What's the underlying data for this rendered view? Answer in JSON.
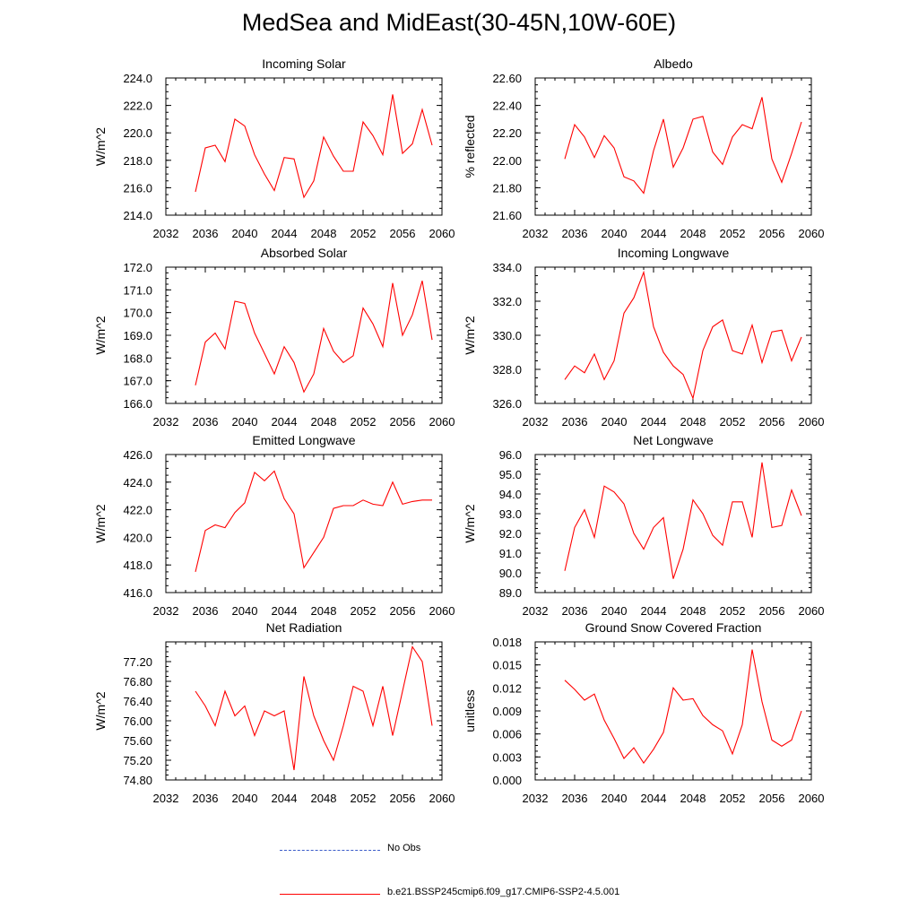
{
  "title": "MedSea and MidEast(30-45N,10W-60E)",
  "legend": {
    "items": [
      {
        "label": "No Obs",
        "color": "#3a5bc9",
        "dashed": true
      },
      {
        "label": "b.e21.BSSP245cmip6.f09_g17.CMIP6-SSP2-4.5.001",
        "color": "#ff0000",
        "dashed": false
      }
    ]
  },
  "chart_data": [
    {
      "type": "line",
      "title": "Incoming Solar",
      "xlabel": "",
      "ylabel": "W/m^2",
      "xlim": [
        2032,
        2060
      ],
      "ylim": [
        214,
        224
      ],
      "xticks": [
        "2032",
        "2036",
        "2040",
        "2044",
        "2048",
        "2052",
        "2056",
        "2060"
      ],
      "yticks": [
        "214.0",
        "216.0",
        "218.0",
        "220.0",
        "222.0",
        "224.0"
      ],
      "series": [
        {
          "color": "#ff0000",
          "x": [
            2035,
            2036,
            2037,
            2038,
            2039,
            2040,
            2041,
            2042,
            2043,
            2044,
            2045,
            2046,
            2047,
            2048,
            2049,
            2050,
            2051,
            2052,
            2053,
            2054,
            2055,
            2056,
            2057,
            2058,
            2059
          ],
          "y": [
            215.7,
            218.9,
            219.1,
            217.9,
            221.0,
            220.5,
            218.4,
            217.0,
            215.8,
            218.2,
            218.1,
            215.3,
            216.5,
            219.7,
            218.3,
            217.2,
            217.2,
            220.8,
            219.8,
            218.4,
            222.8,
            218.5,
            219.2,
            221.7,
            219.1
          ]
        }
      ]
    },
    {
      "type": "line",
      "title": "Albedo",
      "xlabel": "",
      "ylabel": "% reflected",
      "xlim": [
        2032,
        2060
      ],
      "ylim": [
        21.6,
        22.6
      ],
      "xticks": [
        "2032",
        "2036",
        "2040",
        "2044",
        "2048",
        "2052",
        "2056",
        "2060"
      ],
      "yticks": [
        "21.60",
        "21.80",
        "22.00",
        "22.20",
        "22.40",
        "22.60"
      ],
      "series": [
        {
          "color": "#ff0000",
          "x": [
            2035,
            2036,
            2037,
            2038,
            2039,
            2040,
            2041,
            2042,
            2043,
            2044,
            2045,
            2046,
            2047,
            2048,
            2049,
            2050,
            2051,
            2052,
            2053,
            2054,
            2055,
            2056,
            2057,
            2058,
            2059
          ],
          "y": [
            22.01,
            22.26,
            22.17,
            22.02,
            22.18,
            22.09,
            21.88,
            21.85,
            21.76,
            22.07,
            22.3,
            21.95,
            22.09,
            22.3,
            22.32,
            22.06,
            21.97,
            22.17,
            22.26,
            22.23,
            22.46,
            22.01,
            21.84,
            22.05,
            22.28
          ]
        }
      ]
    },
    {
      "type": "line",
      "title": "Absorbed Solar",
      "xlabel": "",
      "ylabel": "W/m^2",
      "xlim": [
        2032,
        2060
      ],
      "ylim": [
        166,
        172
      ],
      "xticks": [
        "2032",
        "2036",
        "2040",
        "2044",
        "2048",
        "2052",
        "2056",
        "2060"
      ],
      "yticks": [
        "166.0",
        "167.0",
        "168.0",
        "169.0",
        "170.0",
        "171.0",
        "172.0"
      ],
      "series": [
        {
          "color": "#ff0000",
          "x": [
            2035,
            2036,
            2037,
            2038,
            2039,
            2040,
            2041,
            2042,
            2043,
            2044,
            2045,
            2046,
            2047,
            2048,
            2049,
            2050,
            2051,
            2052,
            2053,
            2054,
            2055,
            2056,
            2057,
            2058,
            2059
          ],
          "y": [
            166.8,
            168.7,
            169.1,
            168.4,
            170.5,
            170.4,
            169.1,
            168.2,
            167.3,
            168.5,
            167.8,
            166.5,
            167.3,
            169.3,
            168.3,
            167.8,
            168.1,
            170.2,
            169.5,
            168.5,
            171.3,
            169.0,
            169.9,
            171.4,
            168.8
          ]
        }
      ]
    },
    {
      "type": "line",
      "title": "Incoming Longwave",
      "xlabel": "",
      "ylabel": "W/m^2",
      "xlim": [
        2032,
        2060
      ],
      "ylim": [
        326,
        334
      ],
      "xticks": [
        "2032",
        "2036",
        "2040",
        "2044",
        "2048",
        "2052",
        "2056",
        "2060"
      ],
      "yticks": [
        "326.0",
        "328.0",
        "330.0",
        "332.0",
        "334.0"
      ],
      "series": [
        {
          "color": "#ff0000",
          "x": [
            2035,
            2036,
            2037,
            2038,
            2039,
            2040,
            2041,
            2042,
            2043,
            2044,
            2045,
            2046,
            2047,
            2048,
            2049,
            2050,
            2051,
            2052,
            2053,
            2054,
            2055,
            2056,
            2057,
            2058,
            2059
          ],
          "y": [
            327.4,
            328.2,
            327.8,
            328.9,
            327.4,
            328.5,
            331.3,
            332.2,
            333.7,
            330.5,
            329.0,
            328.2,
            327.7,
            326.3,
            329.1,
            330.5,
            330.9,
            329.1,
            328.9,
            330.6,
            328.4,
            330.2,
            330.3,
            328.5,
            329.9
          ]
        }
      ]
    },
    {
      "type": "line",
      "title": "Emitted Longwave",
      "xlabel": "",
      "ylabel": "W/m^2",
      "xlim": [
        2032,
        2060
      ],
      "ylim": [
        416,
        426
      ],
      "xticks": [
        "2032",
        "2036",
        "2040",
        "2044",
        "2048",
        "2052",
        "2056",
        "2060"
      ],
      "yticks": [
        "416.0",
        "418.0",
        "420.0",
        "422.0",
        "424.0",
        "426.0"
      ],
      "series": [
        {
          "color": "#ff0000",
          "x": [
            2035,
            2036,
            2037,
            2038,
            2039,
            2040,
            2041,
            2042,
            2043,
            2044,
            2045,
            2046,
            2047,
            2048,
            2049,
            2050,
            2051,
            2052,
            2053,
            2054,
            2055,
            2056,
            2057,
            2058,
            2059
          ],
          "y": [
            417.5,
            420.5,
            420.9,
            420.7,
            421.8,
            422.5,
            424.7,
            424.1,
            424.8,
            422.8,
            421.7,
            417.8,
            418.9,
            420.0,
            422.1,
            422.3,
            422.3,
            422.7,
            422.4,
            422.3,
            424.0,
            422.4,
            422.6,
            422.7,
            422.7
          ]
        }
      ]
    },
    {
      "type": "line",
      "title": "Net Longwave",
      "xlabel": "",
      "ylabel": "W/m^2",
      "xlim": [
        2032,
        2060
      ],
      "ylim": [
        89,
        96
      ],
      "xticks": [
        "2032",
        "2036",
        "2040",
        "2044",
        "2048",
        "2052",
        "2056",
        "2060"
      ],
      "yticks": [
        "89.0",
        "90.0",
        "91.0",
        "92.0",
        "93.0",
        "94.0",
        "95.0",
        "96.0"
      ],
      "series": [
        {
          "color": "#ff0000",
          "x": [
            2035,
            2036,
            2037,
            2038,
            2039,
            2040,
            2041,
            2042,
            2043,
            2044,
            2045,
            2046,
            2047,
            2048,
            2049,
            2050,
            2051,
            2052,
            2053,
            2054,
            2055,
            2056,
            2057,
            2058,
            2059
          ],
          "y": [
            90.1,
            92.3,
            93.2,
            91.8,
            94.4,
            94.1,
            93.5,
            92.0,
            91.2,
            92.3,
            92.8,
            89.7,
            91.2,
            93.7,
            93.0,
            91.9,
            91.4,
            93.6,
            93.6,
            91.8,
            95.6,
            92.3,
            92.4,
            94.2,
            92.9
          ]
        }
      ]
    },
    {
      "type": "line",
      "title": "Net Radiation",
      "xlabel": "",
      "ylabel": "W/m^2",
      "xlim": [
        2032,
        2060
      ],
      "ylim": [
        74.8,
        77.6
      ],
      "xticks": [
        "2032",
        "2036",
        "2040",
        "2044",
        "2048",
        "2052",
        "2056",
        "2060"
      ],
      "yticks": [
        "74.80",
        "75.20",
        "75.60",
        "76.00",
        "76.40",
        "76.80",
        "77.20"
      ],
      "series": [
        {
          "color": "#ff0000",
          "x": [
            2035,
            2036,
            2037,
            2038,
            2039,
            2040,
            2041,
            2042,
            2043,
            2044,
            2045,
            2046,
            2047,
            2048,
            2049,
            2050,
            2051,
            2052,
            2053,
            2054,
            2055,
            2056,
            2057,
            2058,
            2059
          ],
          "y": [
            76.6,
            76.3,
            75.9,
            76.6,
            76.1,
            76.3,
            75.7,
            76.2,
            76.1,
            76.2,
            75.0,
            76.9,
            76.1,
            75.6,
            75.2,
            75.9,
            76.7,
            76.6,
            75.9,
            76.7,
            75.7,
            76.6,
            77.5,
            77.2,
            75.9
          ]
        }
      ]
    },
    {
      "type": "line",
      "title": "Ground Snow Covered Fraction",
      "xlabel": "",
      "ylabel": "unitless",
      "xlim": [
        2032,
        2060
      ],
      "ylim": [
        0,
        0.018
      ],
      "xticks": [
        "2032",
        "2036",
        "2040",
        "2044",
        "2048",
        "2052",
        "2056",
        "2060"
      ],
      "yticks": [
        "0.000",
        "0.003",
        "0.006",
        "0.009",
        "0.012",
        "0.015",
        "0.018"
      ],
      "series": [
        {
          "color": "#ff0000",
          "x": [
            2035,
            2036,
            2037,
            2038,
            2039,
            2040,
            2041,
            2042,
            2043,
            2044,
            2045,
            2046,
            2047,
            2048,
            2049,
            2050,
            2051,
            2052,
            2053,
            2054,
            2055,
            2056,
            2057,
            2058,
            2059
          ],
          "y": [
            0.013,
            0.0118,
            0.0104,
            0.0112,
            0.0078,
            0.0054,
            0.0028,
            0.0042,
            0.0022,
            0.004,
            0.0062,
            0.012,
            0.0104,
            0.0106,
            0.0084,
            0.0072,
            0.0064,
            0.0034,
            0.0072,
            0.017,
            0.0102,
            0.0052,
            0.0044,
            0.0052,
            0.009
          ]
        }
      ]
    }
  ]
}
